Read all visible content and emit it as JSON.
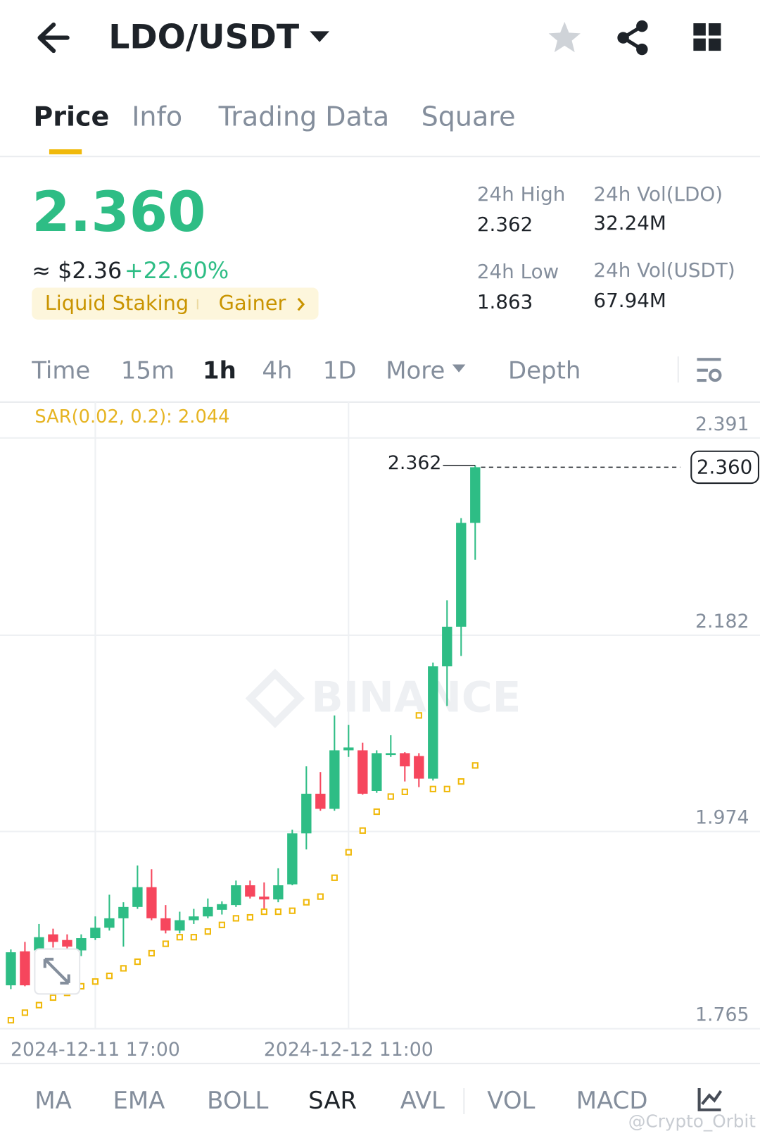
{
  "header": {
    "title": "LDO/USDT"
  },
  "tabs": [
    "Price",
    "Info",
    "Trading Data",
    "Square"
  ],
  "summary": {
    "price": "2.360",
    "usd": "≈ $2.36",
    "change": "+22.60%",
    "tags": [
      "Liquid Staking",
      "Gainer"
    ]
  },
  "stats": [
    {
      "label": "24h High",
      "value": "2.362"
    },
    {
      "label": "24h Vol(LDO)",
      "value": "32.24M"
    },
    {
      "label": "24h Low",
      "value": "1.863"
    },
    {
      "label": "24h Vol(USDT)",
      "value": "67.94M"
    }
  ],
  "intervals": [
    "Time",
    "15m",
    "1h",
    "4h",
    "1D",
    "More",
    "Depth"
  ],
  "indicators": [
    "MA",
    "EMA",
    "BOLL",
    "SAR",
    "AVL",
    "VOL",
    "MACD"
  ],
  "watermark": "BINANCE",
  "credit": "@Crypto_Orbit",
  "chart_data": {
    "type": "candlestick",
    "indicator_label": "SAR(0.02, 0.2): 2.044",
    "categories": [
      null,
      null,
      null,
      null,
      null,
      null,
      "2024-12-11 17:00",
      null,
      null,
      null,
      null,
      null,
      null,
      null,
      null,
      null,
      null,
      null,
      null,
      null,
      null,
      null,
      null,
      null,
      "2024-12-12 11:00",
      null,
      null,
      null,
      null,
      null,
      null,
      null,
      null,
      null
    ],
    "open": [
      1.811,
      1.847,
      1.848,
      1.865,
      1.859,
      1.848,
      1.861,
      1.872,
      1.882,
      1.894,
      1.915,
      1.882,
      1.869,
      1.88,
      1.884,
      1.891,
      1.896,
      1.917,
      1.905,
      1.902,
      1.918,
      1.972,
      2.014,
      1.998,
      2.06,
      2.06,
      2.017,
      2.055,
      2.057,
      2.054,
      2.03,
      2.149,
      2.191,
      2.301
    ],
    "high": [
      1.849,
      1.857,
      1.876,
      1.871,
      1.865,
      1.865,
      1.884,
      1.907,
      1.899,
      1.938,
      1.934,
      1.896,
      1.889,
      1.892,
      1.903,
      1.9,
      1.922,
      1.922,
      1.92,
      1.935,
      1.976,
      2.043,
      2.037,
      2.097,
      2.087,
      2.068,
      2.06,
      2.076,
      2.058,
      2.057,
      2.153,
      2.219,
      2.306,
      2.362
    ],
    "low": [
      1.807,
      1.81,
      1.842,
      1.851,
      1.848,
      1.842,
      1.859,
      1.869,
      1.852,
      1.892,
      1.88,
      1.866,
      1.866,
      1.876,
      1.882,
      1.886,
      1.894,
      1.903,
      1.892,
      1.899,
      1.917,
      1.955,
      1.996,
      1.996,
      2.053,
      2.013,
      2.015,
      2.053,
      2.027,
      2.021,
      2.028,
      2.107,
      2.16,
      2.262
    ],
    "close": [
      1.846,
      1.811,
      1.862,
      1.857,
      1.852,
      1.861,
      1.872,
      1.882,
      1.894,
      1.915,
      1.882,
      1.869,
      1.88,
      1.884,
      1.894,
      1.897,
      1.917,
      1.905,
      1.902,
      1.917,
      1.972,
      2.014,
      1.998,
      2.06,
      2.063,
      2.014,
      2.057,
      2.057,
      2.043,
      2.03,
      2.149,
      2.191,
      2.301,
      2.36
    ],
    "sar": [
      1.774,
      1.782,
      1.79,
      1.798,
      1.803,
      1.81,
      1.815,
      1.821,
      1.829,
      1.836,
      1.845,
      1.855,
      1.862,
      1.862,
      1.868,
      1.875,
      1.882,
      1.883,
      1.889,
      1.889,
      1.89,
      1.899,
      1.905,
      1.925,
      1.952,
      1.975,
      1.995,
      2.011,
      2.016,
      2.097,
      2.019,
      2.019,
      2.027,
      2.044
    ],
    "up_color": "#2ebd85",
    "down_color": "#f6465d",
    "sar_color": "#f0b90b",
    "ylim": [
      1.765,
      2.429
    ],
    "yticks": [
      1.765,
      1.974,
      2.182,
      2.391
    ],
    "high_annotation": 2.362,
    "last_price": {
      "value": 2.36,
      "label": "2.360"
    },
    "grid": true
  }
}
